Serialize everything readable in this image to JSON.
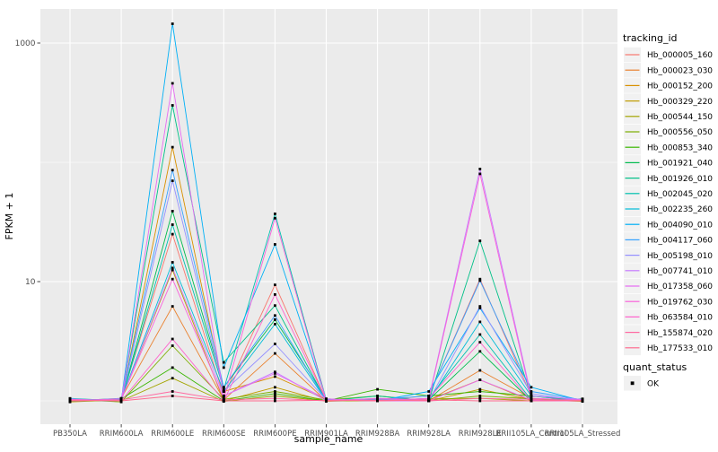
{
  "chart_data": {
    "type": "line",
    "xlabel": "sample_name",
    "ylabel": "FPKM + 1",
    "y_scale": "log10",
    "y_ticks": [
      {
        "value": 1000,
        "label": "1000"
      },
      {
        "value": 10,
        "label": "10"
      }
    ],
    "y_minor_ticks": [
      100,
      1
    ],
    "ylim_log": [
      0.64,
      2000
    ],
    "grid": true,
    "panel_bg": "#EBEBEB",
    "grid_color": "#FFFFFF",
    "point_color": "#000000",
    "legend_position": "right",
    "legend_color_title": "tracking_id",
    "legend_shape_title": "quant_status",
    "legend_shape_items": [
      {
        "label": "OK",
        "shape": "black-square"
      }
    ],
    "categories": [
      "PB350LA",
      "RRIM600LA",
      "RRIM600LE",
      "RRIM600SE",
      "RRIM600PE",
      "RRIM901LA",
      "RRIM928BA",
      "RRIM928LA",
      "RRIM928LE",
      "RRII105LA_Control",
      "RRII105LA_Stressed"
    ],
    "series": [
      {
        "name": "Hb_000005_160",
        "color": "#F8766D",
        "values": [
          1.02,
          1.03,
          25,
          1.1,
          9.4,
          1.02,
          1.02,
          1.1,
          10.5,
          1.1,
          1.02
        ]
      },
      {
        "name": "Hb_000023_030",
        "color": "#EA8331",
        "values": [
          1,
          1.05,
          6.2,
          1.02,
          2.5,
          1,
          1.04,
          1,
          1.8,
          1.05,
          1
        ]
      },
      {
        "name": "Hb_000152_200",
        "color": "#D89000",
        "values": [
          1.04,
          1,
          134,
          1.2,
          1.6,
          1.03,
          1,
          1.02,
          1.5,
          1,
          1.03
        ]
      },
      {
        "name": "Hb_000329_220",
        "color": "#C09B00",
        "values": [
          0.98,
          1.02,
          12.5,
          1,
          1.3,
          0.99,
          1.02,
          1,
          1.25,
          1.02,
          0.99
        ]
      },
      {
        "name": "Hb_000544_150",
        "color": "#A3A500",
        "values": [
          1,
          1,
          1.55,
          0.99,
          1.1,
          1,
          1,
          1.04,
          1.05,
          1,
          1
        ]
      },
      {
        "name": "Hb_000556_050",
        "color": "#7CAE00",
        "values": [
          1.03,
          0.98,
          2.9,
          1.03,
          1.2,
          1.02,
          1.1,
          1,
          1.1,
          1.04,
          1.02
        ]
      },
      {
        "name": "Hb_000853_340",
        "color": "#39B600",
        "values": [
          0.99,
          1.04,
          1.9,
          1,
          1.15,
          1,
          1.25,
          1.1,
          1.2,
          1.1,
          1
        ]
      },
      {
        "name": "Hb_001921_040",
        "color": "#00BB4E",
        "values": [
          1.02,
          1,
          39,
          1.3,
          4.8,
          1.04,
          1,
          1.02,
          2.6,
          1,
          1.04
        ]
      },
      {
        "name": "Hb_001926_010",
        "color": "#00C087",
        "values": [
          1,
          1.02,
          300,
          2.1,
          6.3,
          1,
          1.1,
          1,
          22,
          1.1,
          1
        ]
      },
      {
        "name": "Hb_002045_020",
        "color": "#00C0AF",
        "values": [
          1.05,
          1,
          30,
          1.25,
          37,
          1.02,
          1,
          1.05,
          3.6,
          1.02,
          1
        ]
      },
      {
        "name": "Hb_002235_260",
        "color": "#00BCD8",
        "values": [
          1,
          1.03,
          14.5,
          1.2,
          4.4,
          1,
          1.05,
          1,
          4.6,
          1.1,
          1.03
        ]
      },
      {
        "name": "Hb_004090_010",
        "color": "#00B0F6",
        "values": [
          1.02,
          1,
          1450,
          1.9,
          20.5,
          1.03,
          1,
          1.2,
          6,
          1.3,
          1
        ]
      },
      {
        "name": "Hb_004117_060",
        "color": "#35A2FF",
        "values": [
          1,
          1.05,
          86,
          1.3,
          5.2,
          1,
          1.03,
          1.1,
          10.2,
          1.2,
          1.02
        ]
      },
      {
        "name": "Hb_005198_010",
        "color": "#9590FF",
        "values": [
          1.04,
          1,
          70,
          1.2,
          3,
          1.02,
          1,
          1,
          6.2,
          1.15,
          1
        ]
      },
      {
        "name": "Hb_007741_010",
        "color": "#C77CFF",
        "values": [
          1,
          1.02,
          13,
          1.1,
          1.75,
          1,
          1.02,
          1.04,
          88,
          1.1,
          1.03
        ]
      },
      {
        "name": "Hb_017358_060",
        "color": "#E76BF3",
        "values": [
          1.02,
          1,
          460,
          1.1,
          1.7,
          1.04,
          1,
          1,
          1.5,
          1.02,
          1
        ]
      },
      {
        "name": "Hb_019762_030",
        "color": "#FA62DB",
        "values": [
          1,
          1.04,
          10.5,
          1.05,
          34,
          1,
          1.05,
          1.02,
          80,
          1.05,
          1.02
        ]
      },
      {
        "name": "Hb_063584_010",
        "color": "#FF61CC",
        "values": [
          1.03,
          1,
          3.3,
          1,
          7.8,
          1.02,
          1,
          1.05,
          3.1,
          1,
          1
        ]
      },
      {
        "name": "Hb_155874_020",
        "color": "#FF68A1",
        "values": [
          1,
          1.02,
          1.2,
          1.02,
          1.05,
          1,
          1.02,
          1,
          1.05,
          1.03,
          1
        ]
      },
      {
        "name": "Hb_177533_010",
        "color": "#FF6B8F",
        "values": [
          1.01,
          1,
          1.1,
          1,
          1,
          1.01,
          1,
          1.02,
          1,
          1,
          1.01
        ]
      }
    ]
  }
}
